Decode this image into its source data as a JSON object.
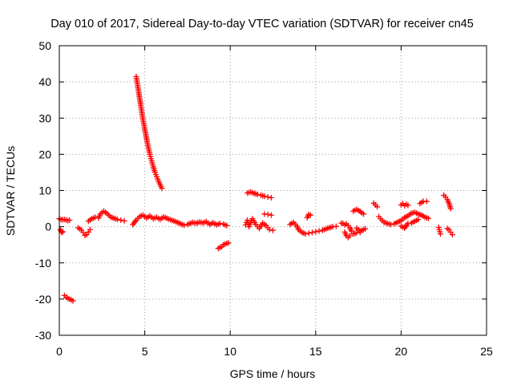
{
  "chart_data": {
    "type": "scatter",
    "title": "Day 010 of 2017, Sidereal Day-to-day VTEC variation (SDTVAR) for receiver cn45",
    "xlabel": "GPS time / hours",
    "ylabel": "SDTVAR / TECUs",
    "xlim": [
      0,
      25
    ],
    "ylim": [
      -30,
      50
    ],
    "xticks": [
      0,
      5,
      10,
      15,
      20,
      25
    ],
    "yticks": [
      -30,
      -20,
      -10,
      0,
      10,
      20,
      30,
      40,
      50
    ],
    "grid": true,
    "marker": "plus",
    "color": "#ff0000",
    "series": [
      {
        "name": "SDTVAR",
        "segments": [
          {
            "x": [
              0.0,
              0.1,
              0.2,
              0.3,
              0.4,
              0.5,
              0.6
            ],
            "y": [
              2.2,
              2.0,
              1.9,
              2.0,
              1.8,
              1.7,
              1.8
            ]
          },
          {
            "x": [
              0.05,
              0.1,
              0.15,
              0.2
            ],
            "y": [
              -0.8,
              -1.2,
              -1.6,
              -1.4
            ]
          },
          {
            "x": [
              0.3,
              0.4,
              0.5,
              0.6,
              0.7,
              0.8
            ],
            "y": [
              -19.0,
              -19.5,
              -19.8,
              -20.0,
              -20.2,
              -20.5
            ]
          },
          {
            "x": [
              1.1,
              1.2,
              1.3,
              1.4,
              1.5,
              1.6,
              1.7,
              1.8
            ],
            "y": [
              -0.3,
              -0.6,
              -1.0,
              -1.6,
              -2.4,
              -2.2,
              -1.5,
              -0.8
            ]
          },
          {
            "x": [
              1.7,
              1.9,
              2.1,
              2.3,
              2.4,
              2.6,
              2.8,
              3.0,
              3.2,
              3.4,
              3.6,
              3.8
            ],
            "y": [
              1.5,
              2.2,
              2.6,
              2.4,
              3.5,
              4.3,
              3.6,
              2.7,
              2.3,
              2.0,
              1.8,
              1.6
            ]
          },
          {
            "x": [
              4.5,
              4.6,
              4.7,
              4.8,
              4.9,
              5.0,
              5.1,
              5.2,
              5.3,
              5.4,
              5.5,
              5.6,
              5.7,
              5.8,
              5.9,
              6.0
            ],
            "y": [
              41.5,
              38.5,
              35.5,
              32.5,
              29.5,
              27.0,
              24.5,
              22.0,
              20.0,
              18.2,
              16.5,
              15.0,
              13.8,
              12.6,
              11.6,
              10.6
            ]
          },
          {
            "x": [
              4.3,
              4.5,
              4.7,
              4.9,
              5.1,
              5.3,
              5.5,
              5.7,
              5.9,
              6.1,
              6.3,
              6.5,
              6.7,
              6.9,
              7.1,
              7.3,
              7.5
            ],
            "y": [
              0.6,
              1.8,
              2.8,
              3.2,
              2.4,
              3.0,
              2.2,
              2.6,
              2.0,
              2.7,
              2.3,
              1.9,
              1.6,
              1.2,
              0.8,
              0.4,
              0.6
            ]
          },
          {
            "x": [
              7.6,
              7.8,
              8.0,
              8.2,
              8.4,
              8.6,
              8.8,
              9.0,
              9.2,
              9.4,
              9.6,
              9.8
            ],
            "y": [
              0.8,
              1.2,
              0.9,
              1.3,
              1.0,
              1.4,
              0.6,
              1.1,
              0.5,
              0.9,
              0.7,
              0.3
            ]
          },
          {
            "x": [
              9.3,
              9.4,
              9.5,
              9.6,
              9.7,
              9.8,
              9.9
            ],
            "y": [
              -6.0,
              -5.8,
              -5.5,
              -5.0,
              -4.8,
              -4.6,
              -4.5
            ]
          },
          {
            "x": [
              11.0,
              11.2,
              11.4,
              11.6,
              11.8,
              12.0,
              12.2,
              12.4
            ],
            "y": [
              9.3,
              9.6,
              9.2,
              8.9,
              8.7,
              8.4,
              8.2,
              8.0
            ]
          },
          {
            "x": [
              10.9,
              11.0,
              11.1,
              11.3,
              11.5,
              11.7,
              11.9,
              12.1,
              12.3,
              12.5
            ],
            "y": [
              0.5,
              1.8,
              0.0,
              2.2,
              0.6,
              -0.5,
              1.0,
              0.3,
              -0.8,
              -1.0
            ]
          },
          {
            "x": [
              12.0,
              12.2,
              12.4
            ],
            "y": [
              3.5,
              3.4,
              3.2
            ]
          },
          {
            "x": [
              13.5,
              13.7,
              13.9,
              14.0,
              14.2,
              14.4,
              14.6,
              14.8,
              15.0,
              15.2,
              15.4,
              15.6,
              15.8,
              16.0,
              16.2
            ],
            "y": [
              0.6,
              1.2,
              0.2,
              -0.8,
              -1.6,
              -2.0,
              -1.8,
              -1.6,
              -1.4,
              -1.2,
              -1.0,
              -0.6,
              -0.3,
              0.0,
              0.1
            ]
          },
          {
            "x": [
              14.5,
              14.6,
              14.7
            ],
            "y": [
              2.5,
              3.4,
              3.2
            ]
          },
          {
            "x": [
              16.5,
              16.6,
              16.7,
              16.8,
              16.9,
              17.0,
              17.1,
              17.2,
              17.4,
              17.6
            ],
            "y": [
              1.0,
              0.9,
              0.5,
              0.8,
              0.3,
              -0.3,
              -1.2,
              -2.0,
              -1.7,
              -1.6
            ]
          },
          {
            "x": [
              16.7,
              16.8,
              16.9,
              17.0
            ],
            "y": [
              -1.5,
              -2.5,
              -3.0,
              -2.5
            ]
          },
          {
            "x": [
              17.2,
              17.4,
              17.6,
              17.8
            ],
            "y": [
              4.3,
              4.8,
              4.2,
              3.5
            ]
          },
          {
            "x": [
              17.4,
              17.6,
              17.8,
              17.9
            ],
            "y": [
              -0.4,
              -1.2,
              -0.8,
              -0.6
            ]
          },
          {
            "x": [
              18.4,
              18.5,
              18.6
            ],
            "y": [
              6.5,
              6.0,
              5.5
            ]
          },
          {
            "x": [
              18.7,
              18.8,
              18.9,
              19.0,
              19.2,
              19.4,
              19.6,
              19.8,
              20.0,
              20.2,
              20.4,
              20.6,
              20.8,
              21.0,
              21.2,
              21.4,
              21.6
            ],
            "y": [
              2.8,
              2.2,
              1.7,
              1.2,
              0.9,
              0.6,
              0.8,
              1.3,
              1.7,
              2.5,
              3.0,
              3.7,
              4.0,
              3.5,
              3.2,
              2.6,
              2.3
            ]
          },
          {
            "x": [
              20.0,
              20.1,
              20.2,
              20.3,
              20.4
            ],
            "y": [
              6.0,
              6.4,
              5.8,
              6.2,
              5.9
            ]
          },
          {
            "x": [
              21.1,
              21.3,
              21.5
            ],
            "y": [
              6.4,
              7.0,
              7.0
            ]
          },
          {
            "x": [
              20.0,
              20.2,
              20.4,
              20.6,
              20.8,
              21.0
            ],
            "y": [
              0.2,
              -0.4,
              0.9,
              1.0,
              1.5,
              2.0
            ]
          },
          {
            "x": [
              22.5,
              22.6,
              22.7,
              22.8,
              22.9
            ],
            "y": [
              8.7,
              8.2,
              7.5,
              6.5,
              5.0
            ]
          },
          {
            "x": [
              22.2,
              22.3
            ],
            "y": [
              -0.2,
              -2.0
            ]
          },
          {
            "x": [
              22.7,
              22.8,
              22.9,
              23.0
            ],
            "y": [
              -0.5,
              -0.8,
              -1.5,
              -2.2
            ]
          }
        ]
      }
    ]
  }
}
